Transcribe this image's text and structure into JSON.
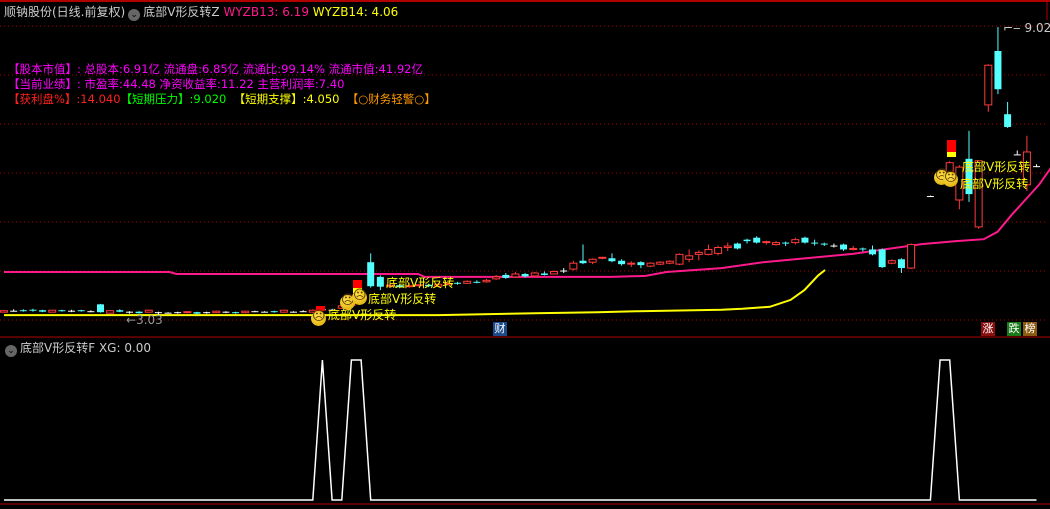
{
  "header": {
    "stock_title": "顺钠股份(日线.前复权)",
    "indicator_name": "底部V形反转Z",
    "wyzb13": "WYZB13: 6.19",
    "wyzb14": "WYZB14: 4.06"
  },
  "info": {
    "line1_label": "【股本市值】:",
    "line1_value": "总股本:6.91亿 流通盘:6.85亿 流通比:99.14% 流通市值:41.92亿",
    "line2_label": "【当前业绩】:",
    "line2_value": "市盈率:44.48 净资收益率:11.22 主营利润率:7.40",
    "profit": "【获利盘%】:14.040",
    "pressure": "【短期压力】:9.020",
    "support": "【短期支撑】:4.050",
    "warning": "【○财务轻警○】"
  },
  "price_labels": {
    "high": "9.02",
    "low": "3.03"
  },
  "signal_label": "底部V形反转",
  "badges": {
    "finance": "财",
    "rise": "涨",
    "fall": "跌",
    "rank": "榜"
  },
  "lower_panel": {
    "title": "底部V形反转F",
    "xg": "XG: 0.00"
  },
  "colors": {
    "up": "#ff3b3b",
    "down": "#54ffff",
    "ma1": "#ff1a8c",
    "ma2": "#ffff00",
    "grid": "#b00000",
    "xg": "#ffffff"
  },
  "chart_data": {
    "type": "candlestick",
    "ylim": [
      3.03,
      9.02
    ],
    "candles_ohlc": [
      [
        3.2,
        3.23,
        3.24,
        3.19
      ],
      [
        3.23,
        3.23,
        3.26,
        3.21
      ],
      [
        3.24,
        3.22,
        3.26,
        3.21
      ],
      [
        3.25,
        3.23,
        3.27,
        3.21
      ],
      [
        3.24,
        3.21,
        3.25,
        3.2
      ],
      [
        3.2,
        3.24,
        3.25,
        3.2
      ],
      [
        3.24,
        3.23,
        3.25,
        3.21
      ],
      [
        3.23,
        3.23,
        3.25,
        3.2
      ],
      [
        3.24,
        3.22,
        3.25,
        3.21
      ],
      [
        3.22,
        3.22,
        3.24,
        3.2
      ],
      [
        3.36,
        3.2,
        3.37,
        3.19
      ],
      [
        3.18,
        3.23,
        3.24,
        3.17
      ],
      [
        3.24,
        3.21,
        3.26,
        3.2
      ],
      [
        3.21,
        3.21,
        3.22,
        3.17
      ],
      [
        3.21,
        3.18,
        3.22,
        3.17
      ],
      [
        3.2,
        3.24,
        3.25,
        3.19
      ],
      [
        3.2,
        3.2,
        3.21,
        3.15
      ],
      [
        3.19,
        3.19,
        3.2,
        3.18
      ],
      [
        3.2,
        3.2,
        3.21,
        3.17
      ],
      [
        3.19,
        3.21,
        3.22,
        3.18
      ],
      [
        3.2,
        3.17,
        3.21,
        3.16
      ],
      [
        3.2,
        3.2,
        3.21,
        3.17
      ],
      [
        3.19,
        3.22,
        3.23,
        3.18
      ],
      [
        3.21,
        3.21,
        3.22,
        3.18
      ],
      [
        3.2,
        3.18,
        3.21,
        3.17
      ],
      [
        3.19,
        3.22,
        3.23,
        3.18
      ],
      [
        3.22,
        3.22,
        3.23,
        3.2
      ],
      [
        3.21,
        3.21,
        3.22,
        3.2
      ],
      [
        3.22,
        3.2,
        3.23,
        3.19
      ],
      [
        3.2,
        3.24,
        3.25,
        3.19
      ],
      [
        3.21,
        3.21,
        3.22,
        3.19
      ],
      [
        3.22,
        3.22,
        3.24,
        3.21
      ],
      [
        3.2,
        3.24,
        3.26,
        3.19
      ],
      [
        3.26,
        3.24,
        3.28,
        3.23
      ],
      [
        3.25,
        3.25,
        3.27,
        3.22
      ],
      [
        3.28,
        3.33,
        3.36,
        3.27
      ],
      [
        3.34,
        3.38,
        3.4,
        3.32
      ],
      [
        3.4,
        3.48,
        3.5,
        3.38
      ],
      [
        4.22,
        3.73,
        4.4,
        3.7
      ],
      [
        3.92,
        3.72,
        3.95,
        3.65
      ],
      [
        3.73,
        3.75,
        3.79,
        3.7
      ],
      [
        3.75,
        3.71,
        3.78,
        3.7
      ],
      [
        3.72,
        3.74,
        3.8,
        3.7
      ],
      [
        3.74,
        3.76,
        3.78,
        3.72
      ],
      [
        3.76,
        3.73,
        3.78,
        3.71
      ],
      [
        3.73,
        3.77,
        3.8,
        3.72
      ],
      [
        3.78,
        3.79,
        3.84,
        3.76
      ],
      [
        3.8,
        3.78,
        3.82,
        3.76
      ],
      [
        3.79,
        3.83,
        3.85,
        3.78
      ],
      [
        3.82,
        3.8,
        3.85,
        3.79
      ],
      [
        3.82,
        3.85,
        3.88,
        3.8
      ],
      [
        3.88,
        3.92,
        3.96,
        3.86
      ],
      [
        3.96,
        3.9,
        4.0,
        3.88
      ],
      [
        3.92,
        3.98,
        4.02,
        3.9
      ],
      [
        3.98,
        3.93,
        4.0,
        3.91
      ],
      [
        3.94,
        4.0,
        4.02,
        3.92
      ],
      [
        3.99,
        3.96,
        4.03,
        3.95
      ],
      [
        3.98,
        4.03,
        4.05,
        3.97
      ],
      [
        4.05,
        4.05,
        4.1,
        4.0
      ],
      [
        4.08,
        4.2,
        4.25,
        4.05
      ],
      [
        4.25,
        4.2,
        4.58,
        4.18
      ],
      [
        4.22,
        4.28,
        4.3,
        4.18
      ],
      [
        4.3,
        4.32,
        4.33,
        4.28
      ],
      [
        4.3,
        4.24,
        4.4,
        4.22
      ],
      [
        4.25,
        4.18,
        4.28,
        4.15
      ],
      [
        4.18,
        4.2,
        4.24,
        4.12
      ],
      [
        4.22,
        4.16,
        4.24,
        4.1
      ],
      [
        4.14,
        4.2,
        4.22,
        4.12
      ],
      [
        4.18,
        4.22,
        4.24,
        4.16
      ],
      [
        4.2,
        4.24,
        4.26,
        4.18
      ],
      [
        4.18,
        4.38,
        4.4,
        4.16
      ],
      [
        4.28,
        4.35,
        4.48,
        4.22
      ],
      [
        4.38,
        4.42,
        4.46,
        4.26
      ],
      [
        4.38,
        4.48,
        4.58,
        4.36
      ],
      [
        4.4,
        4.52,
        4.56,
        4.36
      ],
      [
        4.52,
        4.55,
        4.62,
        4.45
      ],
      [
        4.6,
        4.5,
        4.62,
        4.48
      ],
      [
        4.68,
        4.65,
        4.7,
        4.6
      ],
      [
        4.72,
        4.62,
        4.75,
        4.6
      ],
      [
        4.62,
        4.64,
        4.66,
        4.58
      ],
      [
        4.58,
        4.62,
        4.65,
        4.56
      ],
      [
        4.62,
        4.6,
        4.64,
        4.55
      ],
      [
        4.62,
        4.68,
        4.72,
        4.58
      ],
      [
        4.72,
        4.62,
        4.74,
        4.6
      ],
      [
        4.62,
        4.6,
        4.68,
        4.56
      ],
      [
        4.6,
        4.58,
        4.62,
        4.55
      ],
      [
        4.56,
        4.56,
        4.6,
        4.52
      ],
      [
        4.58,
        4.48,
        4.6,
        4.45
      ],
      [
        4.48,
        4.5,
        4.55,
        4.46
      ],
      [
        4.5,
        4.48,
        4.52,
        4.44
      ],
      [
        4.48,
        4.38,
        4.56,
        4.36
      ],
      [
        4.48,
        4.12,
        4.5,
        4.1
      ],
      [
        4.2,
        4.25,
        4.28,
        4.18
      ],
      [
        4.28,
        4.1,
        4.3,
        4.0
      ],
      [
        4.1,
        4.58,
        4.6,
        4.08
      ],
      null,
      [
        5.57,
        5.57,
        5.58,
        5.56
      ],
      [
        5.86,
        5.86,
        5.87,
        5.85
      ],
      [
        5.93,
        6.25,
        6.28,
        5.8
      ],
      [
        5.49,
        6.16,
        6.2,
        5.3
      ],
      [
        6.33,
        5.61,
        6.9,
        5.45
      ],
      [
        4.94,
        6.29,
        6.3,
        4.9
      ],
      [
        7.43,
        8.24,
        8.26,
        7.29
      ],
      [
        8.53,
        7.75,
        9.02,
        7.65
      ],
      [
        7.24,
        6.98,
        7.49,
        6.96
      ],
      [
        6.42,
        6.42,
        6.5,
        6.42
      ],
      [
        5.8,
        6.47,
        6.8,
        5.67
      ],
      [
        6.18,
        6.18,
        6.22,
        6.16
      ]
    ],
    "ma_pink": [
      [
        0,
        4.02
      ],
      [
        24,
        4.02
      ],
      [
        25,
        3.98
      ],
      [
        60,
        3.98
      ],
      [
        61,
        3.92
      ],
      [
        88,
        3.92
      ],
      [
        93,
        3.94
      ],
      [
        96,
        4.02
      ],
      [
        104,
        4.1
      ],
      [
        110,
        4.22
      ],
      [
        117,
        4.31
      ],
      [
        123,
        4.39
      ],
      [
        128,
        4.49
      ],
      [
        133,
        4.59
      ],
      [
        138,
        4.65
      ],
      [
        142,
        4.69
      ],
      [
        144,
        4.84
      ],
      [
        146,
        5.18
      ],
      [
        148,
        5.49
      ],
      [
        150,
        5.8
      ],
      [
        152,
        6.2
      ]
    ],
    "ma_yellow": [
      [
        0,
        3.14
      ],
      [
        63,
        3.14
      ],
      [
        77,
        3.18
      ],
      [
        86,
        3.2
      ],
      [
        92,
        3.22
      ],
      [
        104,
        3.25
      ],
      [
        107,
        3.27
      ],
      [
        111,
        3.31
      ],
      [
        114,
        3.45
      ],
      [
        116,
        3.65
      ],
      [
        118,
        3.95
      ],
      [
        119,
        4.06
      ]
    ],
    "xg_values_nonzero_indices": [
      33,
      36,
      37,
      97,
      98
    ]
  }
}
